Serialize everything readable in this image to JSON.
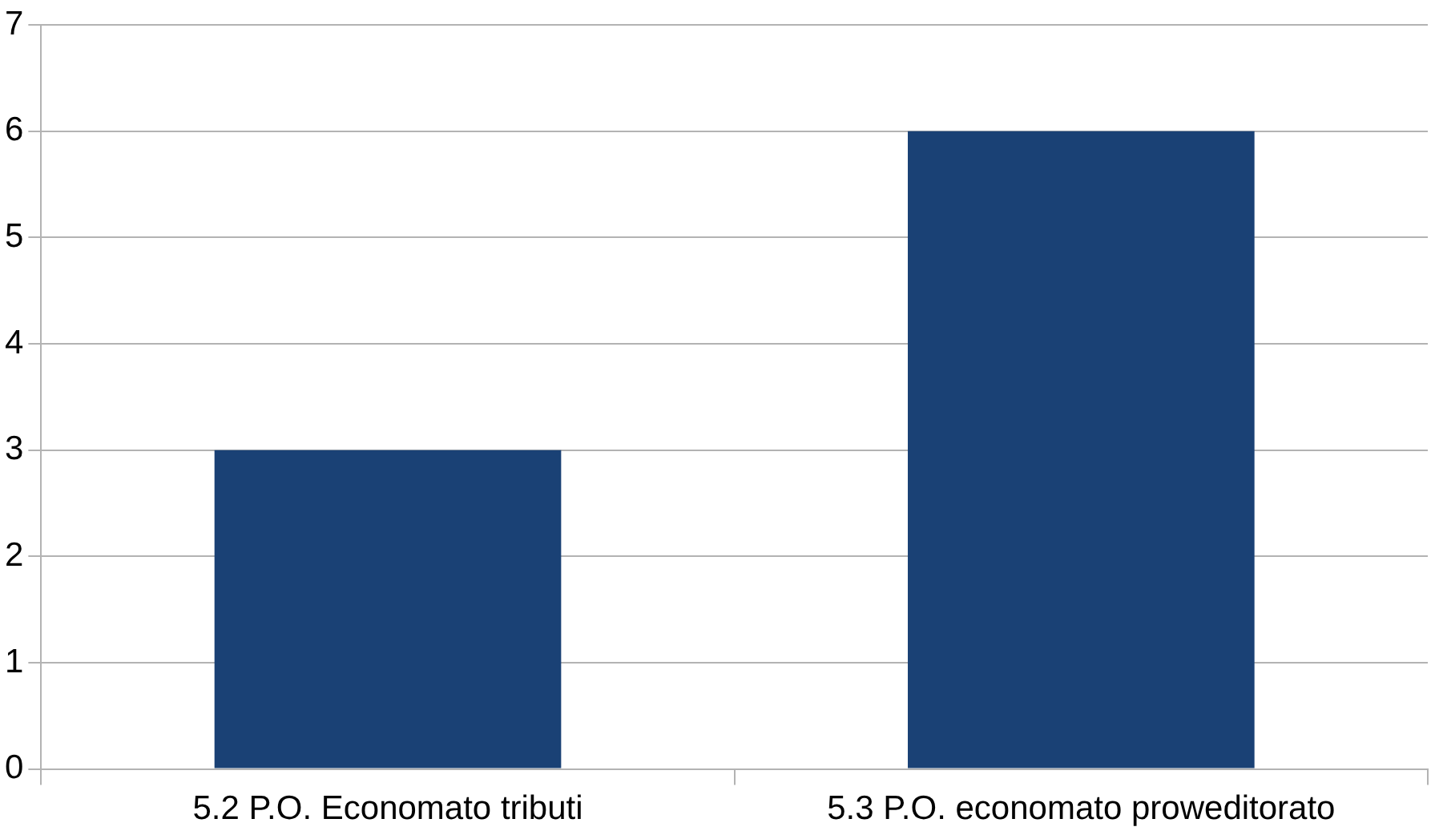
{
  "chart_data": {
    "type": "bar",
    "categories": [
      "5.2 P.O. Economato tributi",
      "5.3 P.O. economato proweditorato"
    ],
    "values": [
      3,
      6
    ],
    "color": "#1a4175",
    "ylim": [
      0,
      7
    ],
    "yticks": [
      0,
      1,
      2,
      3,
      4,
      5,
      6,
      7
    ],
    "grid": "y",
    "legend": false
  }
}
